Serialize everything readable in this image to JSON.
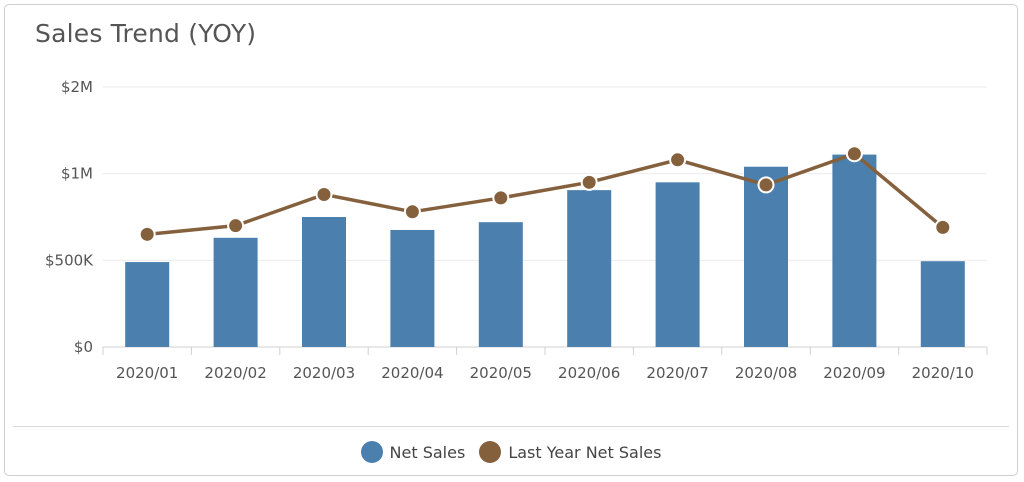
{
  "chart_data": {
    "type": "bar",
    "title": "Sales Trend (YOY)",
    "categories": [
      "2020/01",
      "2020/02",
      "2020/03",
      "2020/04",
      "2020/05",
      "2020/06",
      "2020/07",
      "2020/08",
      "2020/09",
      "2020/10"
    ],
    "series": [
      {
        "name": "Net Sales",
        "type": "bar",
        "color": "#4a7fae",
        "values": [
          490000,
          630000,
          750000,
          675000,
          720000,
          905000,
          950000,
          1040000,
          1110000,
          495000
        ]
      },
      {
        "name": "Last Year Net Sales",
        "type": "line",
        "color": "#85603d",
        "values": [
          650000,
          700000,
          880000,
          780000,
          860000,
          950000,
          1080000,
          935000,
          1115000,
          690000
        ]
      }
    ],
    "yticks": [
      {
        "value": 0,
        "label": "$0"
      },
      {
        "value": 500000,
        "label": "$500K"
      },
      {
        "value": 1000000,
        "label": "$1M"
      },
      {
        "value": 1500000,
        "label": "$2M"
      }
    ],
    "ylim": [
      0,
      1500000
    ],
    "grid": true,
    "legend_position": "bottom-center"
  }
}
